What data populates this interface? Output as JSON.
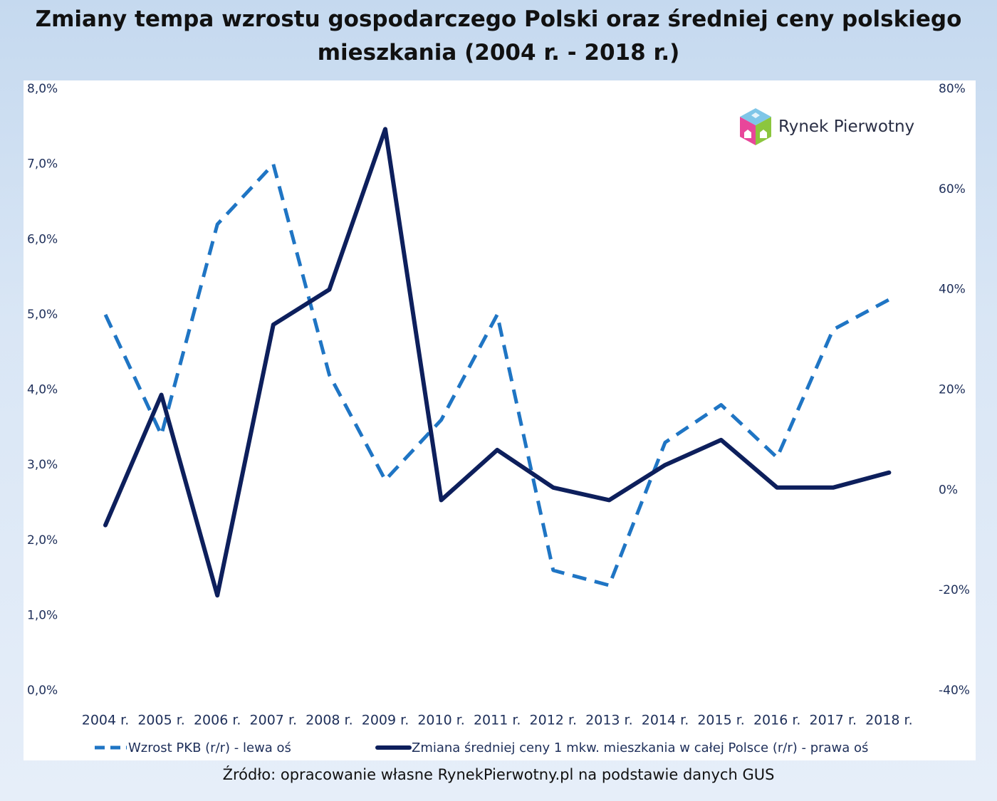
{
  "title_line1": "Zmiany tempa wzrostu gospodarczego Polski oraz średniej ceny polskiego",
  "title_line2": "mieszkania (2004 r. - 2018 r.)",
  "logo_text": "Rynek Pierwotny",
  "source": "Źródło: opracowanie własne RynekPierwotny.pl na podstawie danych GUS",
  "chart_data": {
    "type": "line",
    "categories": [
      "2004 r.",
      "2005 r.",
      "2006 r.",
      "2007 r.",
      "2008 r.",
      "2009 r.",
      "2010 r.",
      "2011 r.",
      "2012 r.",
      "2013 r.",
      "2014 r.",
      "2015 r.",
      "2016 r.",
      "2017 r.",
      "2018 r."
    ],
    "series": [
      {
        "name": "Wzrost PKB (r/r) - lewa oś",
        "axis": "left",
        "style": "dashed",
        "color": "#1f75c4",
        "values": [
          5.0,
          3.4,
          6.2,
          7.0,
          4.2,
          2.8,
          3.6,
          5.0,
          1.6,
          1.4,
          3.3,
          3.8,
          3.1,
          4.8,
          5.2
        ]
      },
      {
        "name": "Zmiana średniej ceny 1 mkw. mieszkania w całej Polsce (r/r) - prawa oś",
        "axis": "right",
        "style": "solid",
        "color": "#0d1f5c",
        "values": [
          -7,
          19,
          -21,
          33,
          40,
          72,
          -2,
          8,
          0.5,
          -2,
          5,
          10,
          0.5,
          0.5,
          3.5
        ]
      }
    ],
    "y_left": {
      "ylim": [
        0,
        8
      ],
      "ticks": [
        0,
        1,
        2,
        3,
        4,
        5,
        6,
        7,
        8
      ],
      "tick_labels": [
        "0,0%",
        "1,0%",
        "2,0%",
        "3,0%",
        "4,0%",
        "5,0%",
        "6,0%",
        "7,0%",
        "8,0%"
      ]
    },
    "y_right": {
      "ylim": [
        -40,
        80
      ],
      "ticks": [
        -40,
        -20,
        0,
        20,
        40,
        60,
        80
      ],
      "tick_labels": [
        "-40%",
        "-20%",
        "0%",
        "20%",
        "40%",
        "60%",
        "80%"
      ]
    },
    "grid": false,
    "legend": "bottom"
  }
}
